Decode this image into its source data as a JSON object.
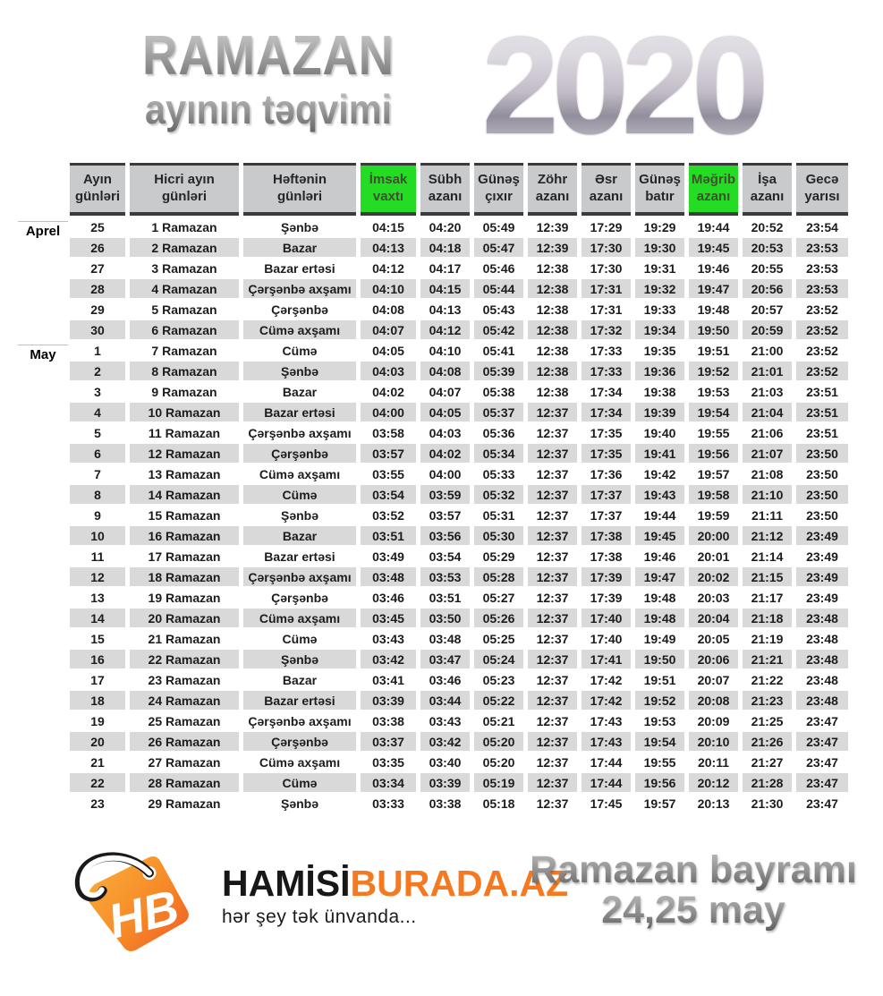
{
  "header": {
    "title_line1": "RAMAZAN",
    "title_line2": "ayının təqvimi",
    "year": "2020"
  },
  "table": {
    "columns": [
      {
        "key": "day",
        "label": "Ayın\ngünləri",
        "highlight": false
      },
      {
        "key": "hijri",
        "label": "Hicri ayın\ngünləri",
        "highlight": false
      },
      {
        "key": "weekday",
        "label": "Həftənin\ngünləri",
        "highlight": false
      },
      {
        "key": "imsak",
        "label": "İmsak\nvaxtı",
        "highlight": true
      },
      {
        "key": "subh",
        "label": "Sübh\nazanı",
        "highlight": false
      },
      {
        "key": "sunrise",
        "label": "Günəş\nçıxır",
        "highlight": false
      },
      {
        "key": "zohr",
        "label": "Zöhr\nazanı",
        "highlight": false
      },
      {
        "key": "asr",
        "label": "Əsr\nazanı",
        "highlight": false
      },
      {
        "key": "sunset",
        "label": "Günəş\nbatır",
        "highlight": false
      },
      {
        "key": "maghrib",
        "label": "Məğrib\nazanı",
        "highlight": true
      },
      {
        "key": "isha",
        "label": "İşa\nazanı",
        "highlight": false
      },
      {
        "key": "midnight",
        "label": "Gecə\nyarısı",
        "highlight": false
      }
    ],
    "month_labels": [
      {
        "label": "Aprel",
        "row_index": 0
      },
      {
        "label": "May",
        "row_index": 6
      }
    ],
    "rows": [
      {
        "cells": [
          "25",
          "1 Ramazan",
          "Şənbə",
          "04:15",
          "04:20",
          "05:49",
          "12:39",
          "17:29",
          "19:29",
          "19:44",
          "20:52",
          "23:54"
        ]
      },
      {
        "cells": [
          "26",
          "2 Ramazan",
          "Bazar",
          "04:13",
          "04:18",
          "05:47",
          "12:39",
          "17:30",
          "19:30",
          "19:45",
          "20:53",
          "23:53"
        ]
      },
      {
        "cells": [
          "27",
          "3 Ramazan",
          "Bazar ertəsi",
          "04:12",
          "04:17",
          "05:46",
          "12:38",
          "17:30",
          "19:31",
          "19:46",
          "20:55",
          "23:53"
        ]
      },
      {
        "cells": [
          "28",
          "4 Ramazan",
          "Çərşənbə axşamı",
          "04:10",
          "04:15",
          "05:44",
          "12:38",
          "17:31",
          "19:32",
          "19:47",
          "20:56",
          "23:53"
        ]
      },
      {
        "cells": [
          "29",
          "5 Ramazan",
          "Çərşənbə",
          "04:08",
          "04:13",
          "05:43",
          "12:38",
          "17:31",
          "19:33",
          "19:48",
          "20:57",
          "23:52"
        ]
      },
      {
        "cells": [
          "30",
          "6 Ramazan",
          "Cümə axşamı",
          "04:07",
          "04:12",
          "05:42",
          "12:38",
          "17:32",
          "19:34",
          "19:50",
          "20:59",
          "23:52"
        ]
      },
      {
        "cells": [
          "1",
          "7 Ramazan",
          "Cümə",
          "04:05",
          "04:10",
          "05:41",
          "12:38",
          "17:33",
          "19:35",
          "19:51",
          "21:00",
          "23:52"
        ]
      },
      {
        "cells": [
          "2",
          "8 Ramazan",
          "Şənbə",
          "04:03",
          "04:08",
          "05:39",
          "12:38",
          "17:33",
          "19:36",
          "19:52",
          "21:01",
          "23:52"
        ]
      },
      {
        "cells": [
          "3",
          "9 Ramazan",
          "Bazar",
          "04:02",
          "04:07",
          "05:38",
          "12:38",
          "17:34",
          "19:38",
          "19:53",
          "21:03",
          "23:51"
        ]
      },
      {
        "cells": [
          "4",
          "10 Ramazan",
          "Bazar ertəsi",
          "04:00",
          "04:05",
          "05:37",
          "12:37",
          "17:34",
          "19:39",
          "19:54",
          "21:04",
          "23:51"
        ]
      },
      {
        "cells": [
          "5",
          "11 Ramazan",
          "Çərşənbə axşamı",
          "03:58",
          "04:03",
          "05:36",
          "12:37",
          "17:35",
          "19:40",
          "19:55",
          "21:06",
          "23:51"
        ]
      },
      {
        "cells": [
          "6",
          "12 Ramazan",
          "Çərşənbə",
          "03:57",
          "04:02",
          "05:34",
          "12:37",
          "17:35",
          "19:41",
          "19:56",
          "21:07",
          "23:50"
        ]
      },
      {
        "cells": [
          "7",
          "13 Ramazan",
          "Cümə axşamı",
          "03:55",
          "04:00",
          "05:33",
          "12:37",
          "17:36",
          "19:42",
          "19:57",
          "21:08",
          "23:50"
        ]
      },
      {
        "cells": [
          "8",
          "14 Ramazan",
          "Cümə",
          "03:54",
          "03:59",
          "05:32",
          "12:37",
          "17:37",
          "19:43",
          "19:58",
          "21:10",
          "23:50"
        ]
      },
      {
        "cells": [
          "9",
          "15 Ramazan",
          "Şənbə",
          "03:52",
          "03:57",
          "05:31",
          "12:37",
          "17:37",
          "19:44",
          "19:59",
          "21:11",
          "23:50"
        ]
      },
      {
        "cells": [
          "10",
          "16 Ramazan",
          "Bazar",
          "03:51",
          "03:56",
          "05:30",
          "12:37",
          "17:38",
          "19:45",
          "20:00",
          "21:12",
          "23:49"
        ]
      },
      {
        "cells": [
          "11",
          "17 Ramazan",
          "Bazar ertəsi",
          "03:49",
          "03:54",
          "05:29",
          "12:37",
          "17:38",
          "19:46",
          "20:01",
          "21:14",
          "23:49"
        ]
      },
      {
        "cells": [
          "12",
          "18 Ramazan",
          "Çərşənbə axşamı",
          "03:48",
          "03:53",
          "05:28",
          "12:37",
          "17:39",
          "19:47",
          "20:02",
          "21:15",
          "23:49"
        ]
      },
      {
        "cells": [
          "13",
          "19 Ramazan",
          "Çərşənbə",
          "03:46",
          "03:51",
          "05:27",
          "12:37",
          "17:39",
          "19:48",
          "20:03",
          "21:17",
          "23:49"
        ]
      },
      {
        "cells": [
          "14",
          "20 Ramazan",
          "Cümə axşamı",
          "03:45",
          "03:50",
          "05:26",
          "12:37",
          "17:40",
          "19:48",
          "20:04",
          "21:18",
          "23:48"
        ]
      },
      {
        "cells": [
          "15",
          "21 Ramazan",
          "Cümə",
          "03:43",
          "03:48",
          "05:25",
          "12:37",
          "17:40",
          "19:49",
          "20:05",
          "21:19",
          "23:48"
        ]
      },
      {
        "cells": [
          "16",
          "22 Ramazan",
          "Şənbə",
          "03:42",
          "03:47",
          "05:24",
          "12:37",
          "17:41",
          "19:50",
          "20:06",
          "21:21",
          "23:48"
        ]
      },
      {
        "cells": [
          "17",
          "23 Ramazan",
          "Bazar",
          "03:41",
          "03:46",
          "05:23",
          "12:37",
          "17:42",
          "19:51",
          "20:07",
          "21:22",
          "23:48"
        ]
      },
      {
        "cells": [
          "18",
          "24 Ramazan",
          "Bazar ertəsi",
          "03:39",
          "03:44",
          "05:22",
          "12:37",
          "17:42",
          "19:52",
          "20:08",
          "21:23",
          "23:48"
        ]
      },
      {
        "cells": [
          "19",
          "25 Ramazan",
          "Çərşənbə axşamı",
          "03:38",
          "03:43",
          "05:21",
          "12:37",
          "17:43",
          "19:53",
          "20:09",
          "21:25",
          "23:47"
        ]
      },
      {
        "cells": [
          "20",
          "26 Ramazan",
          "Çərşənbə",
          "03:37",
          "03:42",
          "05:20",
          "12:37",
          "17:43",
          "19:54",
          "20:10",
          "21:26",
          "23:47"
        ]
      },
      {
        "cells": [
          "21",
          "27 Ramazan",
          "Cümə axşamı",
          "03:35",
          "03:40",
          "05:20",
          "12:37",
          "17:44",
          "19:55",
          "20:11",
          "21:27",
          "23:47"
        ]
      },
      {
        "cells": [
          "22",
          "28 Ramazan",
          "Cümə",
          "03:34",
          "03:39",
          "05:19",
          "12:37",
          "17:44",
          "19:56",
          "20:12",
          "21:28",
          "23:47"
        ]
      },
      {
        "cells": [
          "23",
          "29 Ramazan",
          "Şənbə",
          "03:33",
          "03:38",
          "05:18",
          "12:37",
          "17:45",
          "19:57",
          "20:13",
          "21:30",
          "23:47"
        ]
      }
    ]
  },
  "footer": {
    "logo": {
      "monogram": "HB",
      "brand_black": "HAMİSİ",
      "brand_orange": "BURADA.AZ",
      "tagline": "hər şey tək ünvanda..."
    },
    "holiday": {
      "line1": "Ramazan bayramı",
      "line2": "24,25 may"
    }
  },
  "colors": {
    "highlight_green": "#23DC23",
    "stripe_grey": "#D9D9D9",
    "header_grey": "#C9CACB",
    "border_dark": "#3B3B3B",
    "brand_orange": "#F47920"
  }
}
